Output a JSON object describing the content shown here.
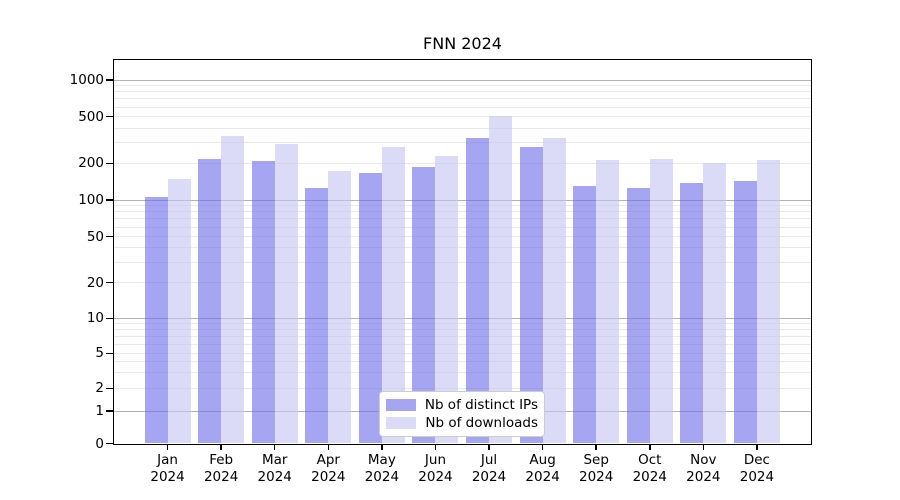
{
  "chart_data": {
    "type": "bar",
    "title": "FNN 2024",
    "categories": [
      "Jan",
      "Feb",
      "Mar",
      "Apr",
      "May",
      "Jun",
      "Jul",
      "Aug",
      "Sep",
      "Oct",
      "Nov",
      "Dec"
    ],
    "year": "2024",
    "series": [
      {
        "name": "Nb of distinct IPs",
        "values": [
          106,
          218,
          209,
          125,
          168,
          187,
          330,
          275,
          131,
          126,
          137,
          143
        ]
      },
      {
        "name": "Nb of downloads",
        "values": [
          149,
          345,
          290,
          172,
          275,
          233,
          505,
          330,
          212,
          218,
          201,
          212
        ]
      }
    ],
    "yscale": "symlog",
    "yticks": [
      0,
      1,
      2,
      5,
      10,
      20,
      50,
      100,
      200,
      500,
      1000
    ],
    "grid": "on",
    "legend_position": "lower center"
  },
  "colors": {
    "ips_bar_fill": "#6e6ee9",
    "downloads_bar_fill": "#c5c5f3",
    "bar_opacity": 0.62,
    "grid_major": "#b3b3b3",
    "grid_minor": "#e9e9e9",
    "axis": "#000000",
    "legend_border": "#cccccc"
  }
}
